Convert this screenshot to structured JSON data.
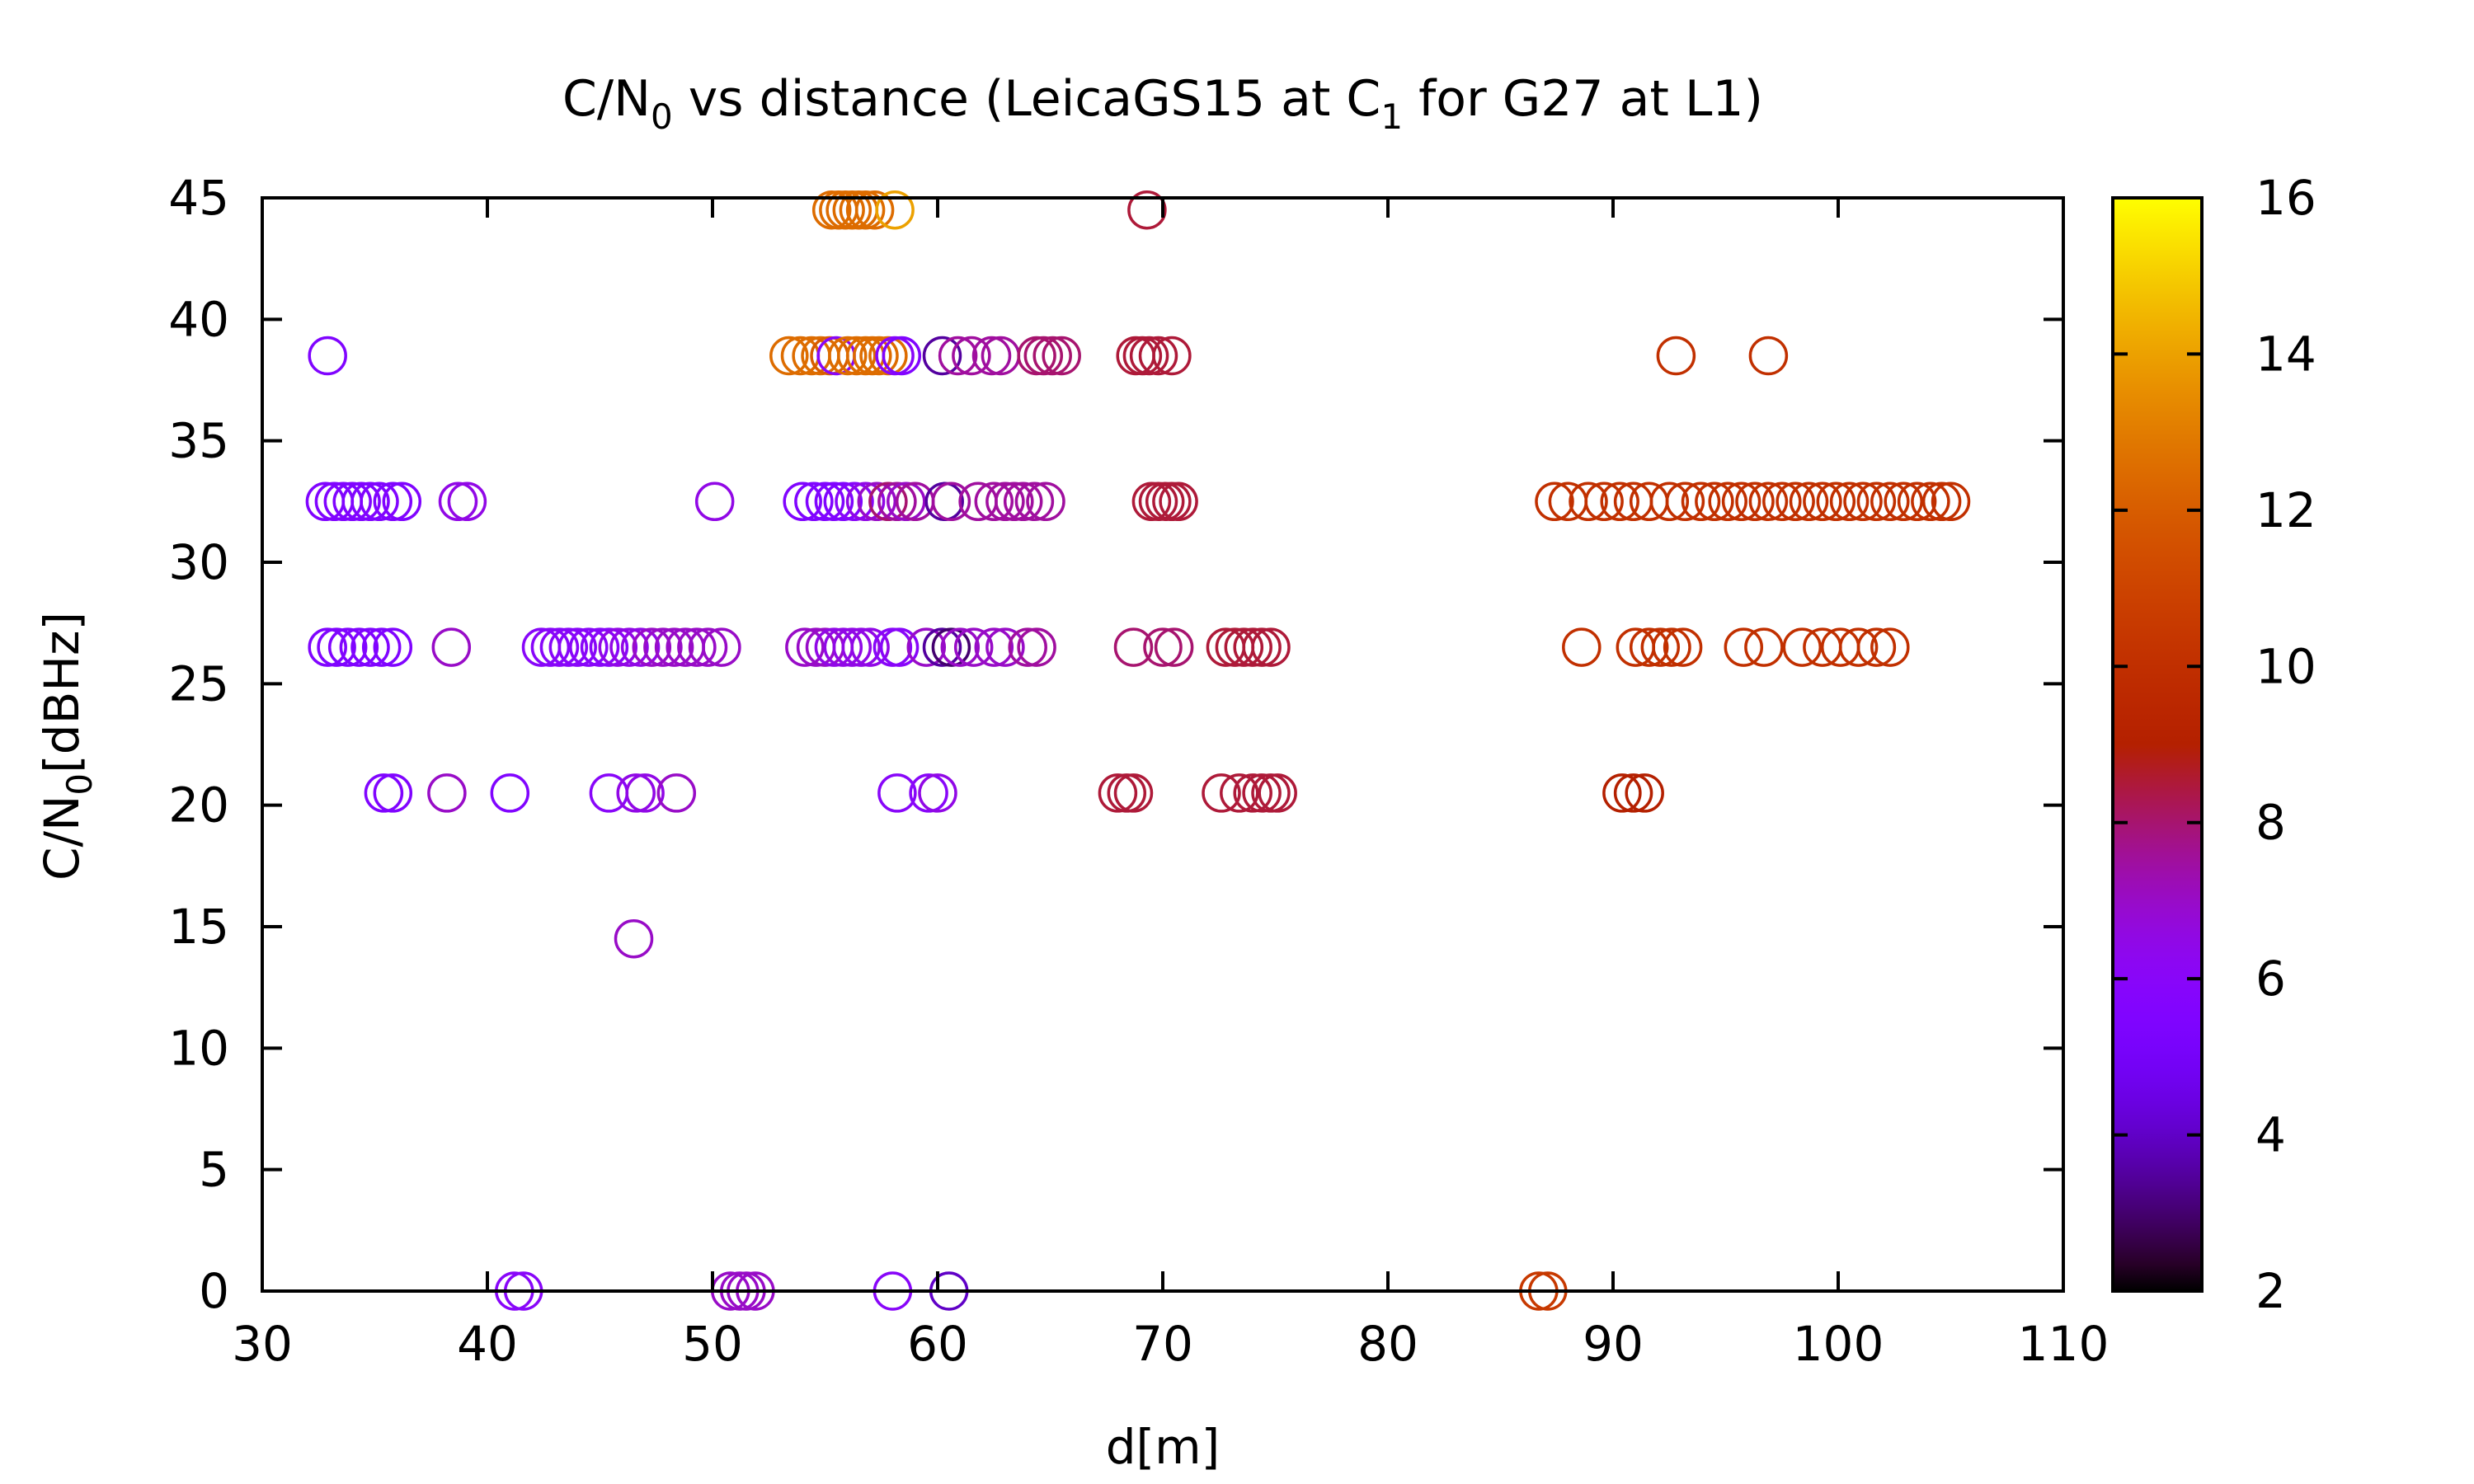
{
  "chart_data": {
    "type": "scatter",
    "title_parts": {
      "pre": "C/N",
      "sub": "0",
      "mid": " vs distance (LeicaGS15 at C",
      "sub2": "1",
      "post": " for G27 at L1)"
    },
    "xlabel": "d[m]",
    "ylabel_parts": {
      "pre": "C/N",
      "sub": "0",
      "post": "[dBHz]"
    },
    "xlim": [
      30,
      110
    ],
    "ylim": [
      0,
      45
    ],
    "xticks": [
      30,
      40,
      50,
      60,
      70,
      80,
      90,
      100,
      110
    ],
    "yticks": [
      0,
      5,
      10,
      15,
      20,
      25,
      30,
      35,
      40,
      45
    ],
    "colorbar": {
      "range": [
        2,
        16
      ],
      "ticks": [
        2,
        4,
        6,
        8,
        10,
        12,
        14,
        16
      ],
      "palette": "gnuplot default (black-purple-red-orange-yellow)"
    },
    "marker": "open-circle",
    "grid": false,
    "points": [
      [
        32.9,
        38.5,
        5.5
      ],
      [
        32.8,
        32.5,
        5.5
      ],
      [
        33.2,
        32.5,
        5.5
      ],
      [
        33.6,
        32.5,
        5.5
      ],
      [
        34.0,
        32.5,
        5.5
      ],
      [
        34.4,
        32.5,
        5.5
      ],
      [
        34.8,
        32.5,
        5.5
      ],
      [
        35.2,
        32.5,
        5.5
      ],
      [
        35.8,
        32.5,
        5.5
      ],
      [
        36.2,
        32.5,
        5.5
      ],
      [
        38.7,
        32.5,
        6.5
      ],
      [
        39.1,
        32.5,
        6.5
      ],
      [
        50.1,
        32.5,
        6.5
      ],
      [
        54.0,
        32.5,
        5.5
      ],
      [
        54.5,
        32.5,
        5.5
      ],
      [
        55.0,
        32.5,
        5.5
      ],
      [
        55.4,
        32.5,
        5.5
      ],
      [
        55.8,
        32.5,
        5.5
      ],
      [
        56.3,
        32.5,
        6.0
      ],
      [
        56.8,
        32.5,
        6.5
      ],
      [
        57.3,
        32.5,
        7.0
      ],
      [
        57.8,
        32.5,
        8.0
      ],
      [
        58.2,
        32.5,
        7.5
      ],
      [
        58.6,
        32.5,
        7.0
      ],
      [
        59.0,
        32.5,
        7.5
      ],
      [
        60.3,
        32.5,
        3.5
      ],
      [
        60.6,
        32.5,
        7.5
      ],
      [
        61.8,
        32.5,
        7.5
      ],
      [
        62.5,
        32.5,
        7.5
      ],
      [
        63.0,
        32.5,
        7.5
      ],
      [
        63.4,
        32.5,
        7.5
      ],
      [
        63.8,
        32.5,
        7.5
      ],
      [
        64.3,
        32.5,
        7.5
      ],
      [
        64.8,
        32.5,
        7.5
      ],
      [
        69.5,
        32.5,
        8.5
      ],
      [
        69.8,
        32.5,
        8.5
      ],
      [
        70.1,
        32.5,
        8.5
      ],
      [
        70.4,
        32.5,
        8.5
      ],
      [
        70.7,
        32.5,
        8.5
      ],
      [
        87.4,
        32.5,
        10.0
      ],
      [
        88.0,
        32.5,
        10.0
      ],
      [
        88.9,
        32.5,
        10.0
      ],
      [
        89.6,
        32.5,
        10.0
      ],
      [
        90.3,
        32.5,
        10.0
      ],
      [
        90.9,
        32.5,
        10.0
      ],
      [
        91.6,
        32.5,
        10.0
      ],
      [
        92.5,
        32.5,
        10.0
      ],
      [
        93.2,
        32.5,
        10.0
      ],
      [
        93.9,
        32.5,
        10.0
      ],
      [
        94.5,
        32.5,
        10.0
      ],
      [
        95.1,
        32.5,
        10.0
      ],
      [
        95.7,
        32.5,
        10.0
      ],
      [
        96.3,
        32.5,
        10.0
      ],
      [
        96.9,
        32.5,
        10.0
      ],
      [
        97.5,
        32.5,
        10.0
      ],
      [
        98.1,
        32.5,
        10.0
      ],
      [
        98.7,
        32.5,
        10.0
      ],
      [
        99.3,
        32.5,
        10.0
      ],
      [
        99.9,
        32.5,
        10.0
      ],
      [
        100.5,
        32.5,
        10.0
      ],
      [
        101.1,
        32.5,
        10.0
      ],
      [
        101.7,
        32.5,
        10.0
      ],
      [
        102.3,
        32.5,
        10.0
      ],
      [
        102.9,
        32.5,
        10.0
      ],
      [
        103.5,
        32.5,
        10.0
      ],
      [
        104.1,
        32.5,
        10.0
      ],
      [
        104.6,
        32.5,
        10.0
      ],
      [
        105.0,
        32.5,
        10.0
      ],
      [
        53.4,
        38.5,
        12.5
      ],
      [
        53.9,
        38.5,
        12.5
      ],
      [
        54.4,
        38.5,
        12.5
      ],
      [
        54.8,
        38.5,
        12.5
      ],
      [
        55.2,
        38.5,
        12.0
      ],
      [
        55.5,
        38.5,
        6.0
      ],
      [
        56.0,
        38.5,
        12.5
      ],
      [
        56.4,
        38.5,
        12.5
      ],
      [
        56.8,
        38.5,
        12.5
      ],
      [
        57.1,
        38.5,
        12.5
      ],
      [
        57.4,
        38.5,
        12.5
      ],
      [
        57.8,
        38.5,
        12.5
      ],
      [
        58.1,
        38.5,
        6.0
      ],
      [
        58.4,
        38.5,
        5.5
      ],
      [
        60.2,
        38.5,
        3.5
      ],
      [
        60.9,
        38.5,
        7.5
      ],
      [
        61.5,
        38.5,
        7.5
      ],
      [
        62.4,
        38.5,
        7.5
      ],
      [
        62.8,
        38.5,
        7.5
      ],
      [
        64.4,
        38.5,
        8.0
      ],
      [
        64.7,
        38.5,
        8.0
      ],
      [
        65.1,
        38.5,
        8.0
      ],
      [
        65.5,
        38.5,
        8.0
      ],
      [
        68.8,
        38.5,
        8.5
      ],
      [
        69.1,
        38.5,
        8.5
      ],
      [
        69.4,
        38.5,
        8.5
      ],
      [
        69.8,
        38.5,
        8.5
      ],
      [
        70.4,
        38.5,
        8.5
      ],
      [
        92.8,
        38.5,
        10.0
      ],
      [
        96.9,
        38.5,
        10.0
      ],
      [
        55.3,
        44.5,
        12.5
      ],
      [
        55.6,
        44.5,
        12.5
      ],
      [
        55.9,
        44.5,
        12.5
      ],
      [
        56.2,
        44.5,
        12.5
      ],
      [
        56.5,
        44.5,
        12.5
      ],
      [
        56.8,
        44.5,
        12.5
      ],
      [
        57.2,
        44.5,
        12.5
      ],
      [
        58.1,
        44.5,
        14.0
      ],
      [
        69.3,
        44.5,
        8.5
      ],
      [
        32.9,
        26.5,
        5.5
      ],
      [
        33.3,
        26.5,
        5.5
      ],
      [
        33.8,
        26.5,
        5.5
      ],
      [
        34.3,
        26.5,
        5.5
      ],
      [
        34.8,
        26.5,
        5.5
      ],
      [
        35.3,
        26.5,
        5.5
      ],
      [
        35.8,
        26.5,
        5.5
      ],
      [
        38.4,
        26.5,
        7.0
      ],
      [
        42.4,
        26.5,
        6.0
      ],
      [
        42.8,
        26.5,
        6.0
      ],
      [
        43.2,
        26.5,
        6.0
      ],
      [
        43.6,
        26.5,
        6.0
      ],
      [
        44.0,
        26.5,
        6.0
      ],
      [
        44.5,
        26.5,
        6.0
      ],
      [
        45.0,
        26.5,
        6.0
      ],
      [
        45.4,
        26.5,
        6.0
      ],
      [
        45.8,
        26.5,
        6.5
      ],
      [
        46.3,
        26.5,
        6.5
      ],
      [
        46.8,
        26.5,
        6.5
      ],
      [
        47.3,
        26.5,
        7.0
      ],
      [
        47.8,
        26.5,
        7.0
      ],
      [
        48.3,
        26.5,
        7.0
      ],
      [
        48.8,
        26.5,
        7.0
      ],
      [
        49.3,
        26.5,
        7.0
      ],
      [
        49.8,
        26.5,
        7.0
      ],
      [
        50.4,
        26.5,
        7.0
      ],
      [
        54.1,
        26.5,
        7.0
      ],
      [
        54.6,
        26.5,
        7.0
      ],
      [
        55.0,
        26.5,
        7.0
      ],
      [
        55.4,
        26.5,
        6.5
      ],
      [
        55.8,
        26.5,
        6.5
      ],
      [
        56.2,
        26.5,
        6.5
      ],
      [
        56.6,
        26.5,
        6.5
      ],
      [
        57.0,
        26.5,
        6.5
      ],
      [
        58.0,
        26.5,
        6.0
      ],
      [
        58.3,
        26.5,
        6.0
      ],
      [
        59.5,
        26.5,
        7.0
      ],
      [
        60.2,
        26.5,
        3.5
      ],
      [
        60.6,
        26.5,
        3.0
      ],
      [
        61.0,
        26.5,
        7.0
      ],
      [
        61.6,
        26.5,
        7.0
      ],
      [
        62.5,
        26.5,
        7.0
      ],
      [
        63.0,
        26.5,
        7.0
      ],
      [
        64.0,
        26.5,
        7.5
      ],
      [
        64.4,
        26.5,
        7.5
      ],
      [
        68.7,
        26.5,
        8.0
      ],
      [
        70.0,
        26.5,
        8.0
      ],
      [
        70.5,
        26.5,
        8.0
      ],
      [
        72.8,
        26.5,
        8.5
      ],
      [
        73.2,
        26.5,
        8.5
      ],
      [
        73.6,
        26.5,
        8.5
      ],
      [
        74.0,
        26.5,
        8.5
      ],
      [
        74.4,
        26.5,
        8.5
      ],
      [
        74.8,
        26.5,
        8.5
      ],
      [
        88.6,
        26.5,
        10.0
      ],
      [
        91.0,
        26.5,
        10.0
      ],
      [
        91.6,
        26.5,
        10.0
      ],
      [
        92.1,
        26.5,
        10.0
      ],
      [
        92.6,
        26.5,
        10.0
      ],
      [
        93.1,
        26.5,
        10.0
      ],
      [
        95.8,
        26.5,
        10.0
      ],
      [
        96.7,
        26.5,
        10.0
      ],
      [
        98.4,
        26.5,
        10.0
      ],
      [
        99.3,
        26.5,
        10.0
      ],
      [
        100.1,
        26.5,
        10.0
      ],
      [
        100.9,
        26.5,
        10.0
      ],
      [
        101.7,
        26.5,
        10.0
      ],
      [
        102.3,
        26.5,
        10.0
      ],
      [
        35.4,
        20.5,
        5.5
      ],
      [
        35.8,
        20.5,
        5.5
      ],
      [
        38.2,
        20.5,
        7.0
      ],
      [
        41.0,
        20.5,
        5.5
      ],
      [
        45.4,
        20.5,
        6.0
      ],
      [
        46.6,
        20.5,
        6.5
      ],
      [
        47.0,
        20.5,
        6.5
      ],
      [
        48.4,
        20.5,
        7.0
      ],
      [
        58.2,
        20.5,
        6.0
      ],
      [
        59.6,
        20.5,
        6.0
      ],
      [
        60.0,
        20.5,
        6.5
      ],
      [
        68.0,
        20.5,
        8.5
      ],
      [
        68.4,
        20.5,
        8.5
      ],
      [
        68.7,
        20.5,
        8.5
      ],
      [
        72.6,
        20.5,
        8.5
      ],
      [
        73.4,
        20.5,
        8.5
      ],
      [
        74.0,
        20.5,
        8.5
      ],
      [
        74.4,
        20.5,
        8.5
      ],
      [
        74.8,
        20.5,
        8.5
      ],
      [
        75.1,
        20.5,
        8.5
      ],
      [
        90.4,
        20.5,
        9.0
      ],
      [
        90.9,
        20.5,
        9.0
      ],
      [
        91.4,
        20.5,
        9.0
      ],
      [
        46.5,
        14.5,
        7.0
      ],
      [
        41.2,
        0,
        6.0
      ],
      [
        41.6,
        0,
        6.0
      ],
      [
        50.8,
        0,
        7.0
      ],
      [
        51.2,
        0,
        7.0
      ],
      [
        51.5,
        0,
        7.0
      ],
      [
        51.9,
        0,
        7.0
      ],
      [
        58.0,
        0,
        6.0
      ],
      [
        60.5,
        0,
        4.0
      ],
      [
        86.7,
        0,
        10.5
      ],
      [
        87.1,
        0,
        10.5
      ]
    ]
  }
}
